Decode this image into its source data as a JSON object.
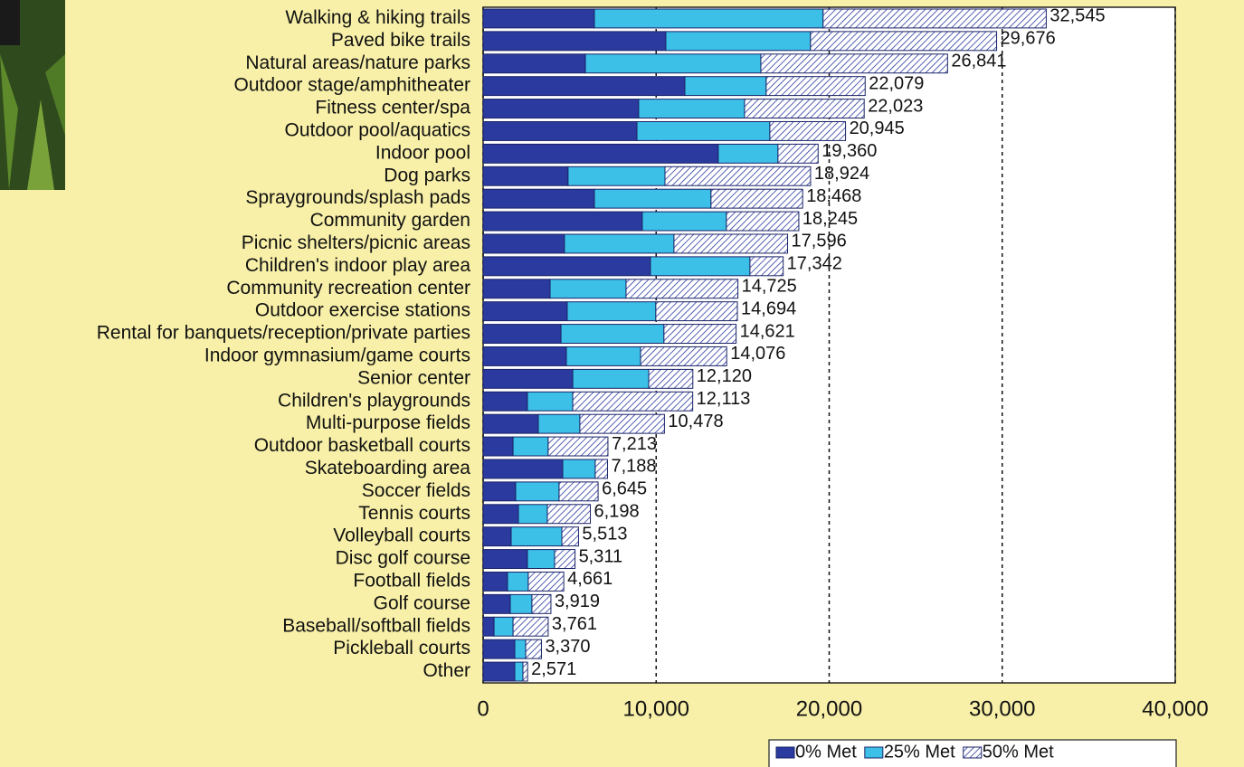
{
  "chart_data": {
    "type": "stacked-barh",
    "categories": [
      "Walking & hiking trails",
      "Paved bike trails",
      "Natural areas/nature parks",
      "Outdoor stage/amphitheater",
      "Fitness center/spa",
      "Outdoor pool/aquatics",
      "Indoor pool",
      "Dog parks",
      "Spraygrounds/splash pads",
      "Community garden",
      "Picnic shelters/picnic areas",
      "Children's indoor play area",
      "Community recreation center",
      "Outdoor exercise stations",
      "Rental for banquets/reception/private parties",
      "Indoor gymnasium/game courts",
      "Senior center",
      "Children's playgrounds",
      "Multi-purpose fields",
      "Outdoor basketball courts",
      "Skateboarding area",
      "Soccer fields",
      "Tennis courts",
      "Volleyball courts",
      "Disc golf course",
      "Football fields",
      "Golf course",
      "Baseball/softball fields",
      "Pickleball courts",
      "Other"
    ],
    "series": [
      {
        "name": "0% Met",
        "color": "#2b3a9e",
        "values": [
          6430,
          10560,
          5910,
          11660,
          8990,
          8890,
          13590,
          4910,
          6430,
          9200,
          4700,
          9670,
          3870,
          4860,
          4500,
          4810,
          5180,
          2560,
          3190,
          1730,
          4600,
          1880,
          2040,
          1620,
          2560,
          1410,
          1570,
          630,
          1830,
          1830
        ]
      },
      {
        "name": "25% Met",
        "color": "#3cc0e8",
        "values": [
          13220,
          8360,
          10140,
          4700,
          6120,
          7680,
          3450,
          5600,
          6740,
          4860,
          6330,
          5750,
          4390,
          5120,
          5950,
          4290,
          4390,
          2620,
          2400,
          2030,
          1880,
          2510,
          1670,
          2930,
          1570,
          1200,
          1250,
          1100,
          630,
          470
        ]
      },
      {
        "name": "50% Met",
        "color": "#2b3a9e",
        "hatch": true,
        "values": [
          12895,
          10756,
          10791,
          5719,
          6913,
          4375,
          2320,
          8414,
          5298,
          4185,
          6566,
          1922,
          6465,
          4714,
          4171,
          4976,
          2550,
          6933,
          4888,
          3453,
          708,
          2255,
          2488,
          963,
          1181,
          2051,
          1099,
          2031,
          910,
          271
        ]
      }
    ],
    "totals": [
      32545,
      29676,
      26841,
      22079,
      22023,
      20945,
      19360,
      18924,
      18468,
      18245,
      17596,
      17342,
      14725,
      14694,
      14621,
      14076,
      12120,
      12113,
      10478,
      7213,
      7188,
      6645,
      6198,
      5513,
      5311,
      4661,
      3919,
      3761,
      3370,
      2571
    ],
    "total_labels": [
      "32,545",
      "29,676",
      "26,841",
      "22,079",
      "22,023",
      "20,945",
      "19,360",
      "18,924",
      "18,468",
      "18,245",
      "17,596",
      "17,342",
      "14,725",
      "14,694",
      "14,621",
      "14,076",
      "12,120",
      "12,113",
      "10,478",
      "7,213",
      "7,188",
      "6,645",
      "6,198",
      "5,513",
      "5,311",
      "4,661",
      "3,919",
      "3,761",
      "3,370",
      "2,571"
    ],
    "xlim": [
      0,
      40000
    ],
    "xticks": [
      0,
      {
        "value": 10000,
        "label": "10,000"
      },
      {
        "value": 20000,
        "label": "20,000"
      },
      {
        "value": 30000,
        "label": "30,000"
      },
      {
        "value": 40000,
        "label": "40,000"
      }
    ],
    "grid": true
  }
}
